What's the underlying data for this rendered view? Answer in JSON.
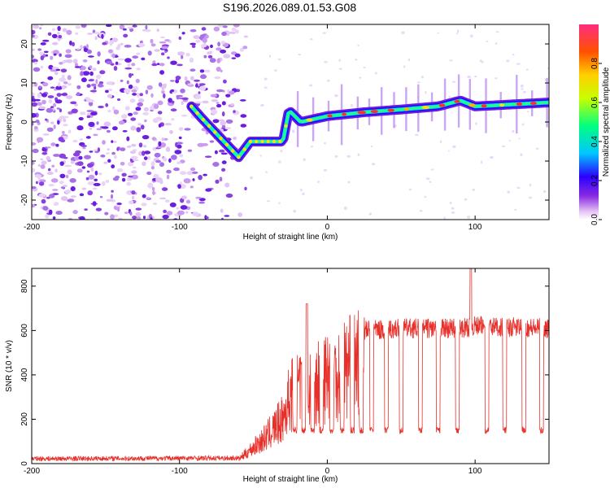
{
  "title": "S196.2026.089.01.53.G08",
  "chart_data": [
    {
      "type": "heatmap",
      "title": "S196.2026.089.01.53.G08",
      "xlabel": "Height of straight line (km)",
      "ylabel": "Frequency (Hz)",
      "xlim": [
        -200,
        150
      ],
      "ylim": [
        -25,
        25
      ],
      "xticks": [
        -200,
        -100,
        0,
        100
      ],
      "yticks": [
        -20,
        -10,
        0,
        10,
        20
      ],
      "colorbar": {
        "label": "Normalized spectral amplitude",
        "range": [
          0,
          1
        ],
        "ticks": [
          0.0,
          0.2,
          0.4,
          0.6,
          0.8
        ]
      },
      "ridge": [
        {
          "x": -92,
          "y": 4
        },
        {
          "x": -85,
          "y": 1
        },
        {
          "x": -75,
          "y": -3
        },
        {
          "x": -65,
          "y": -7
        },
        {
          "x": -60,
          "y": -9
        },
        {
          "x": -52,
          "y": -5
        },
        {
          "x": -42,
          "y": -5
        },
        {
          "x": -30,
          "y": -5
        },
        {
          "x": -26,
          "y": 3
        },
        {
          "x": -18,
          "y": 0
        },
        {
          "x": 0,
          "y": 1.5
        },
        {
          "x": 25,
          "y": 2.5
        },
        {
          "x": 50,
          "y": 3.2
        },
        {
          "x": 75,
          "y": 4
        },
        {
          "x": 90,
          "y": 5.5
        },
        {
          "x": 100,
          "y": 4
        },
        {
          "x": 125,
          "y": 4.5
        },
        {
          "x": 150,
          "y": 5
        }
      ],
      "noise_region_x": [
        -200,
        -55
      ]
    },
    {
      "type": "line",
      "xlabel": "Height of straight line (km)",
      "ylabel": "SNR (10 * v/v)",
      "xlim": [
        -200,
        150
      ],
      "ylim": [
        0,
        880
      ],
      "xticks": [
        -200,
        -100,
        0,
        100
      ],
      "yticks": [
        0,
        200,
        400,
        600,
        800
      ],
      "color": "#e8302a",
      "envelope": [
        {
          "x": -200,
          "y": 22
        },
        {
          "x": -60,
          "y": 25
        },
        {
          "x": -42,
          "y": 150
        },
        {
          "x": -30,
          "y": 260
        },
        {
          "x": -25,
          "y": 400
        },
        {
          "x": -10,
          "y": 470
        },
        {
          "x": 10,
          "y": 540
        },
        {
          "x": 25,
          "y": 600
        },
        {
          "x": 50,
          "y": 610
        },
        {
          "x": 90,
          "y": 610
        },
        {
          "x": 100,
          "y": 620
        },
        {
          "x": 150,
          "y": 610
        }
      ],
      "dropouts_x": [
        -22,
        -16,
        -10,
        -4,
        3,
        10,
        17,
        23,
        30,
        40,
        50,
        63,
        75,
        88,
        108,
        120,
        133,
        145
      ],
      "dropout_value": 150,
      "peaks": [
        {
          "x": -14,
          "y": 720
        },
        {
          "x": 97,
          "y": 880
        }
      ]
    }
  ]
}
